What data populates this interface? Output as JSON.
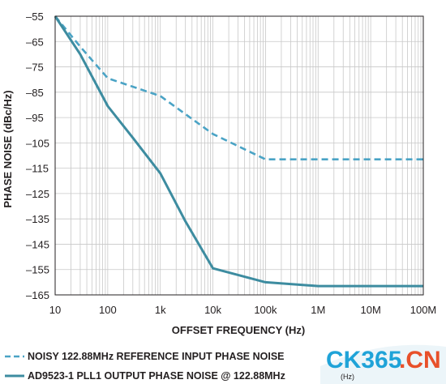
{
  "chart_data": {
    "type": "line",
    "xlabel": "OFFSET FREQUENCY (Hz)",
    "ylabel": "PHASE NOISE (dBc/Hz)",
    "x_scale": "log",
    "xlim": [
      10,
      100000000
    ],
    "ylim": [
      -165,
      -55
    ],
    "x_ticks": [
      {
        "value": 10,
        "label": "10"
      },
      {
        "value": 100,
        "label": "100"
      },
      {
        "value": 1000,
        "label": "1k"
      },
      {
        "value": 10000,
        "label": "10k"
      },
      {
        "value": 100000,
        "label": "100k"
      },
      {
        "value": 1000000,
        "label": "1M"
      },
      {
        "value": 10000000,
        "label": "10M"
      },
      {
        "value": 100000000,
        "label": "100M"
      }
    ],
    "y_ticks": [
      -55,
      -65,
      -75,
      -85,
      -95,
      -105,
      -115,
      -125,
      -135,
      -145,
      -155,
      -165
    ],
    "y_tick_labels": [
      "–55",
      "–65",
      "–75",
      "–85",
      "–95",
      "–105",
      "–115",
      "–125",
      "–135",
      "–145",
      "–155",
      "–165"
    ],
    "grid": true,
    "legend_position": "bottom",
    "series": [
      {
        "name": "NOISY 122.88MHz REFERENCE INPUT PHASE NOISE",
        "style": "dashed",
        "color": "#4aa3c5",
        "x": [
          10,
          30,
          100,
          1000,
          10000,
          100000,
          1000000,
          10000000,
          100000000
        ],
        "y": [
          -55,
          -67,
          -79.5,
          -86.5,
          -101.5,
          -111.5,
          -111.5,
          -111.5,
          -111.5
        ]
      },
      {
        "name": "AD9523-1 PLL1 OUTPUT PHASE NOISE @ 122.88MHz",
        "style": "solid",
        "color": "#3d8ca0",
        "x": [
          10,
          30,
          100,
          300,
          1000,
          3000,
          10000,
          100000,
          1000000,
          10000000,
          100000000
        ],
        "y": [
          -55,
          -70,
          -90.5,
          -103,
          -117,
          -136,
          -154.5,
          -160,
          -161.5,
          -161.5,
          -161.5
        ]
      }
    ]
  },
  "watermark": {
    "text_part1": "CK365",
    "text_part2": ".CN",
    "sub": "(Hz)",
    "color_primary": "#1fa3d8",
    "color_accent": "#e8502a"
  },
  "colors": {
    "grid": "#c8c8c8",
    "frame": "#231f20",
    "text": "#231f20"
  }
}
